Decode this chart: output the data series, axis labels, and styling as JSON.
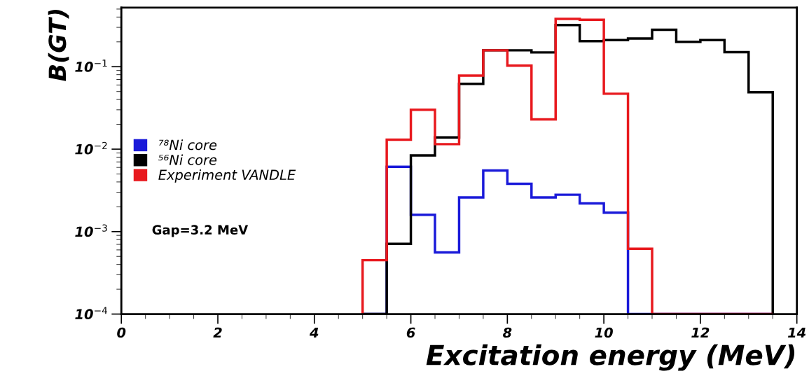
{
  "chart_data": {
    "type": "histogram",
    "xlabel": "Excitation energy (MeV)",
    "ylabel": "B(GT)",
    "log": "y",
    "xlim": [
      0,
      14
    ],
    "xticks": [
      0,
      2,
      4,
      6,
      8,
      10,
      12,
      14
    ],
    "ylim": [
      0.0001,
      0.52
    ],
    "yticks": [
      {
        "value": 0.0001,
        "label": "10$^{−4}$"
      },
      {
        "value": 0.001,
        "label": "10$^{−3}$"
      },
      {
        "value": 0.01,
        "label": "10$^{−2}$"
      },
      {
        "value": 0.1,
        "label": "10$^{−1}$"
      }
    ],
    "grid": false,
    "legend": "left",
    "annotations": [
      "Gap=3.2 MeV"
    ],
    "bins": [
      5.0,
      5.5,
      6.0,
      6.5,
      7.0,
      7.5,
      8.0,
      8.5,
      9.0,
      9.5,
      10.0,
      10.5,
      11.0,
      11.5,
      12.0,
      12.5,
      13.0,
      13.5
    ],
    "series": [
      {
        "name": "⁷⁸Ni core",
        "color": "#1a1ad9",
        "values": [
          null,
          0.0061,
          0.0016,
          0.00056,
          0.0026,
          0.0055,
          0.0038,
          0.0026,
          0.0028,
          0.0022,
          0.0017,
          null,
          null,
          null,
          null,
          null,
          null
        ]
      },
      {
        "name": "⁵⁶Ni core",
        "color": "#000000",
        "values": [
          null,
          0.00071,
          0.0084,
          0.0139,
          0.062,
          0.158,
          0.158,
          0.149,
          0.32,
          0.204,
          0.21,
          0.22,
          0.28,
          0.2,
          0.21,
          0.15,
          0.049
        ]
      },
      {
        "name": "Experiment VANDLE",
        "color": "#e8191e",
        "values": [
          0.00045,
          0.013,
          0.03,
          0.0115,
          0.078,
          0.158,
          0.103,
          0.023,
          0.38,
          0.37,
          0.047,
          0.00062,
          null,
          null,
          null,
          null,
          null
        ]
      }
    ]
  }
}
